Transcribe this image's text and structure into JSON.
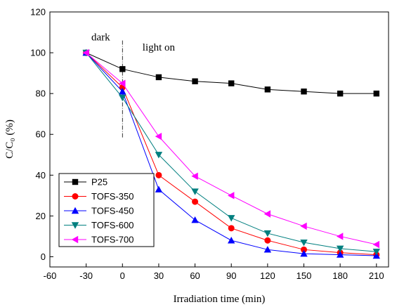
{
  "chart_data": {
    "type": "line",
    "title": "",
    "xlabel": "Irradiation time (min)",
    "ylabel": "C/C₀ (%)",
    "xlim": [
      -60,
      220
    ],
    "ylim": [
      -5,
      120
    ],
    "xticks": [
      -60,
      -30,
      0,
      30,
      60,
      90,
      120,
      150,
      180,
      210
    ],
    "yticks": [
      0,
      20,
      40,
      60,
      80,
      100,
      120
    ],
    "x": [
      -30,
      0,
      30,
      60,
      90,
      120,
      150,
      180,
      210
    ],
    "grid": false,
    "legend_position": "bottom-left",
    "annotations": [
      {
        "text": "dark",
        "x": -18,
        "y": 106
      },
      {
        "text": "light on",
        "x": 30,
        "y": 101
      }
    ],
    "vline_x": 0,
    "series": [
      {
        "name": "P25",
        "color": "#000000",
        "marker": "square",
        "values": [
          100,
          92,
          88,
          86,
          85,
          82,
          81,
          80,
          80
        ]
      },
      {
        "name": "TOFS-350",
        "color": "#ff0000",
        "marker": "circle",
        "values": [
          100,
          83,
          40,
          27,
          14,
          8,
          3.5,
          2,
          1
        ]
      },
      {
        "name": "TOFS-450",
        "color": "#0000ff",
        "marker": "triangle-up",
        "values": [
          100,
          81,
          33,
          18,
          8,
          3.5,
          1.5,
          1,
          0.5
        ]
      },
      {
        "name": "TOFS-600",
        "color": "#007f7f",
        "marker": "triangle-down",
        "values": [
          100,
          78,
          50,
          32,
          19,
          11.5,
          7,
          4,
          2.5
        ]
      },
      {
        "name": "TOFS-700",
        "color": "#ff00ff",
        "marker": "triangle-left",
        "values": [
          100,
          85,
          59,
          39.5,
          30,
          21,
          15,
          10,
          6
        ]
      }
    ]
  }
}
